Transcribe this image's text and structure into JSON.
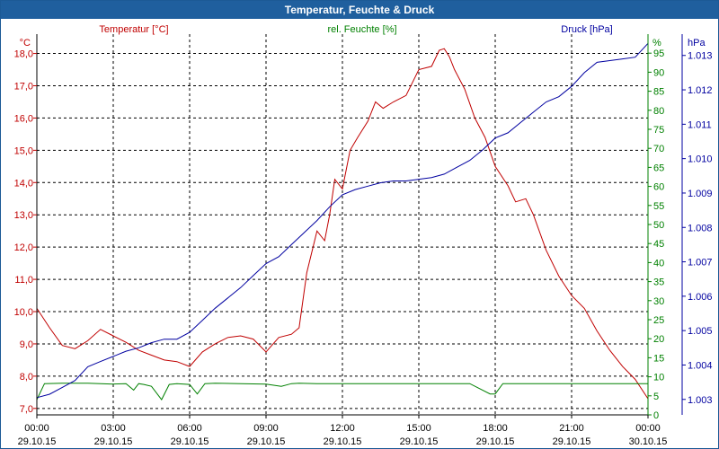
{
  "window": {
    "title": "Temperatur, Feuchte & Druck"
  },
  "chart_data": {
    "type": "line",
    "title": "Temperatur, Feuchte & Druck",
    "colors": {
      "temperature": "#c00000",
      "humidity": "#008000",
      "pressure": "#0000a0",
      "grid": "#000000"
    },
    "x_labels": [
      {
        "time": "00:00",
        "date": "29.10.15"
      },
      {
        "time": "03:00",
        "date": "29.10.15"
      },
      {
        "time": "06:00",
        "date": "29.10.15"
      },
      {
        "time": "09:00",
        "date": "29.10.15"
      },
      {
        "time": "12:00",
        "date": "29.10.15"
      },
      {
        "time": "15:00",
        "date": "29.10.15"
      },
      {
        "time": "18:00",
        "date": "29.10.15"
      },
      {
        "time": "21:00",
        "date": "29.10.15"
      },
      {
        "time": "00:00",
        "date": "30.10.15"
      }
    ],
    "x_range_hours": [
      0,
      24
    ],
    "axes": {
      "temperature": {
        "label": "Temperatur [°C]",
        "unit": "°C",
        "range": [
          6.8,
          18.6
        ],
        "ticks": [
          "7,0",
          "8,0",
          "9,0",
          "10,0",
          "11,0",
          "12,0",
          "13,0",
          "14,0",
          "15,0",
          "16,0",
          "17,0",
          "18,0"
        ],
        "tick_values": [
          7,
          8,
          9,
          10,
          11,
          12,
          13,
          14,
          15,
          16,
          17,
          18
        ]
      },
      "humidity": {
        "label": "rel. Feuchte [%]",
        "unit": "%",
        "range": [
          0,
          100
        ],
        "ticks": [
          "0",
          "5",
          "10",
          "15",
          "20",
          "25",
          "30",
          "35",
          "40",
          "45",
          "50",
          "55",
          "60",
          "65",
          "70",
          "75",
          "80",
          "85",
          "90",
          "95"
        ],
        "tick_values": [
          0,
          5,
          10,
          15,
          20,
          25,
          30,
          35,
          40,
          45,
          50,
          55,
          60,
          65,
          70,
          75,
          80,
          85,
          90,
          95
        ]
      },
      "pressure": {
        "label": "Druck [hPa]",
        "unit": "hPa",
        "range": [
          1002.55,
          1013.62
        ],
        "ticks": [
          "1.003",
          "1.004",
          "1.005",
          "1.006",
          "1.007",
          "1.008",
          "1.009",
          "1.010",
          "1.011",
          "1.012",
          "1.013"
        ],
        "tick_values": [
          1003,
          1004,
          1005,
          1006,
          1007,
          1008,
          1009,
          1010,
          1011,
          1012,
          1013
        ]
      }
    },
    "series": [
      {
        "name": "Temperatur [°C]",
        "axis": "temperature",
        "x": [
          0,
          0.5,
          1,
          1.5,
          2,
          2.5,
          3,
          3.5,
          4,
          4.5,
          5,
          5.5,
          6,
          6.5,
          7,
          7.5,
          8,
          8.5,
          9,
          9.5,
          10,
          10.3,
          10.6,
          11,
          11.3,
          11.5,
          11.7,
          12,
          12.3,
          12.6,
          13,
          13.3,
          13.6,
          14,
          14.5,
          15,
          15.5,
          15.8,
          16,
          16.2,
          16.4,
          16.8,
          17.2,
          17.6,
          18,
          18.5,
          18.8,
          19.2,
          19.5,
          20,
          20.5,
          21,
          21.5,
          22,
          22.5,
          23,
          23.5,
          24
        ],
        "values": [
          10.1,
          9.5,
          8.95,
          8.85,
          9.1,
          9.45,
          9.25,
          9.05,
          8.8,
          8.65,
          8.5,
          8.45,
          8.3,
          8.75,
          9.0,
          9.2,
          9.25,
          9.15,
          8.75,
          9.2,
          9.3,
          9.5,
          11.2,
          12.5,
          12.2,
          13.0,
          14.1,
          13.8,
          15.0,
          15.4,
          15.9,
          16.5,
          16.3,
          16.5,
          16.7,
          17.5,
          17.6,
          18.1,
          18.15,
          17.9,
          17.5,
          16.9,
          16.0,
          15.4,
          14.5,
          13.9,
          13.4,
          13.5,
          13.0,
          11.9,
          11.1,
          10.5,
          10.1,
          9.4,
          8.8,
          8.3,
          7.9,
          7.3
        ]
      },
      {
        "name": "rel. Feuchte [%]",
        "axis": "humidity",
        "x": [
          0,
          0.3,
          1,
          2,
          3,
          3.5,
          3.8,
          4,
          4.2,
          4.5,
          4.9,
          5.2,
          5.5,
          6,
          6.3,
          6.6,
          7,
          8,
          9,
          9.6,
          10,
          10.3,
          11,
          12,
          13,
          14,
          15,
          16,
          17,
          17.8,
          18,
          18.3,
          19,
          20,
          21,
          22,
          23,
          24
        ],
        "values": [
          4,
          8.2,
          8.3,
          8.3,
          8.1,
          8.2,
          6.5,
          8.2,
          8.0,
          7.5,
          4.0,
          8.0,
          8.2,
          8.0,
          5.5,
          8.2,
          8.3,
          8.2,
          8.1,
          7.5,
          8.2,
          8.3,
          8.2,
          8.2,
          8.2,
          8.2,
          8.2,
          8.2,
          8.2,
          5.5,
          5.5,
          8.2,
          8.2,
          8.2,
          8.2,
          8.2,
          8.2,
          8.2
        ]
      },
      {
        "name": "Druck [hPa]",
        "axis": "pressure",
        "x": [
          0,
          0.5,
          1,
          1.5,
          2,
          2.5,
          3,
          3.5,
          4,
          4.5,
          5,
          5.5,
          6,
          6.5,
          7,
          7.5,
          8,
          8.5,
          9,
          9.5,
          10,
          10.5,
          11,
          11.5,
          12,
          12.5,
          13,
          13.5,
          14,
          14.5,
          15,
          15.5,
          16,
          16.5,
          17,
          17.5,
          18,
          18.5,
          19,
          19.5,
          20,
          20.5,
          21,
          21.5,
          22,
          22.5,
          23,
          23.5,
          24
        ],
        "values": [
          1003.05,
          1003.15,
          1003.35,
          1003.55,
          1003.95,
          1004.1,
          1004.25,
          1004.4,
          1004.5,
          1004.65,
          1004.75,
          1004.75,
          1004.95,
          1005.3,
          1005.65,
          1005.95,
          1006.25,
          1006.6,
          1006.95,
          1007.15,
          1007.5,
          1007.85,
          1008.2,
          1008.6,
          1008.95,
          1009.1,
          1009.2,
          1009.3,
          1009.35,
          1009.35,
          1009.4,
          1009.45,
          1009.55,
          1009.75,
          1009.95,
          1010.25,
          1010.6,
          1010.75,
          1011.05,
          1011.35,
          1011.65,
          1011.8,
          1012.1,
          1012.5,
          1012.8,
          1012.85,
          1012.9,
          1012.95,
          1013.35
        ]
      }
    ]
  }
}
